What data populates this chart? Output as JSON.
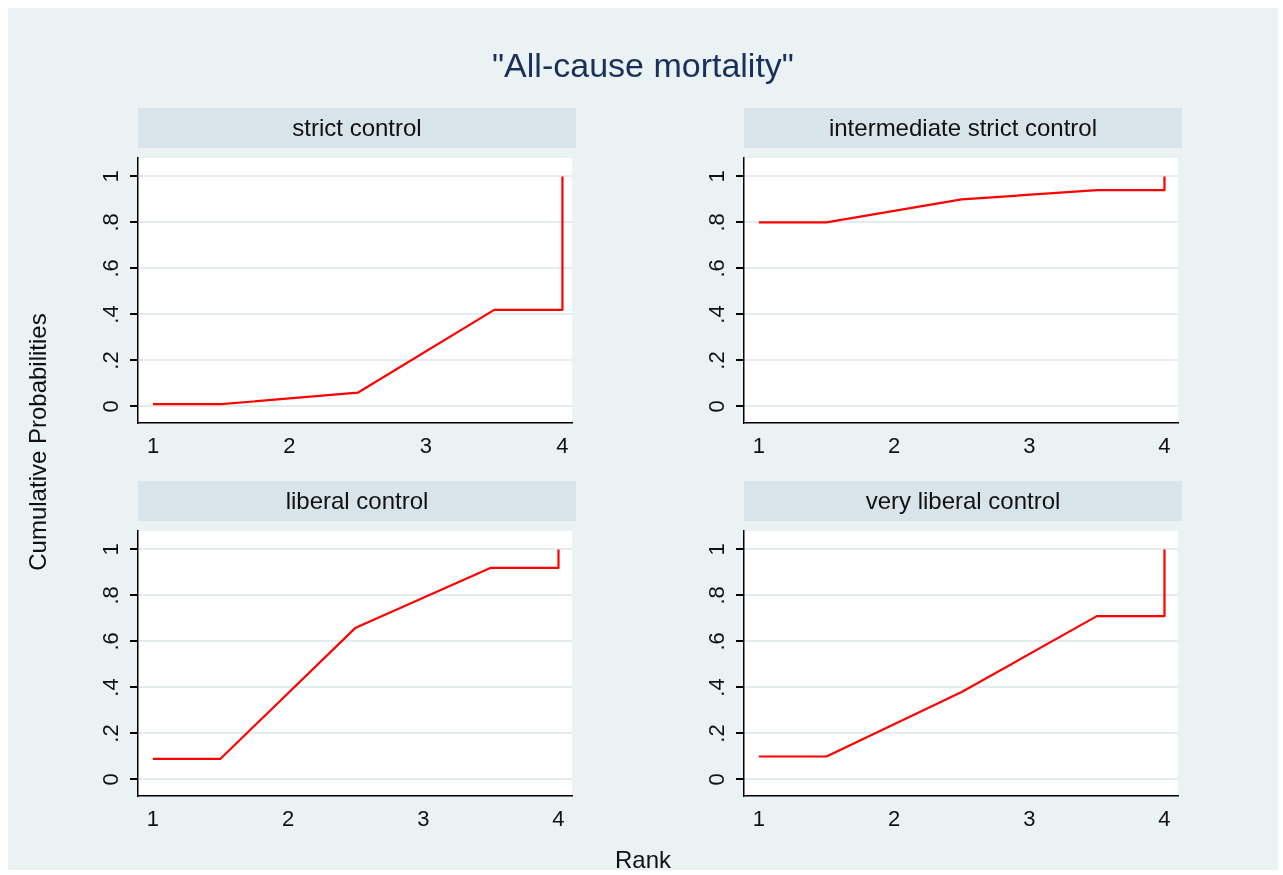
{
  "chart_data": [
    {
      "type": "line",
      "title": "strict control",
      "ylabel": "Cumulative Probabilities",
      "annotations": [
        "\"All-cause mortality\""
      ],
      "xlim": [
        0.89,
        4.07
      ],
      "ylim": [
        -0.07,
        1.08
      ],
      "xticks": [
        1,
        2,
        3,
        4
      ],
      "yticks": [
        {
          "value": 0,
          "label": "0"
        },
        {
          "value": 0.2,
          "label": ".2"
        },
        {
          "value": 0.4,
          "label": ".4"
        },
        {
          "value": 0.6,
          "label": ".6"
        },
        {
          "value": 0.8,
          "label": ".8"
        },
        {
          "value": 1,
          "label": "1"
        }
      ],
      "grid": "y",
      "legend": false,
      "marker": "none",
      "line_style": "solid",
      "series": [
        {
          "color": "#ff0000",
          "x": [
            1,
            1.5,
            2.5,
            3.5,
            4,
            4
          ],
          "values": [
            0.01,
            0.01,
            0.06,
            0.42,
            0.42,
            1
          ]
        }
      ]
    },
    {
      "type": "line",
      "title": "intermediate strict control",
      "xlim": [
        0.89,
        4.1
      ],
      "ylim": [
        -0.07,
        1.08
      ],
      "xticks": [
        1,
        2,
        3,
        4
      ],
      "yticks": [
        {
          "value": 0,
          "label": "0"
        },
        {
          "value": 0.2,
          "label": ".2"
        },
        {
          "value": 0.4,
          "label": ".4"
        },
        {
          "value": 0.6,
          "label": ".6"
        },
        {
          "value": 0.8,
          "label": ".8"
        },
        {
          "value": 1,
          "label": "1"
        }
      ],
      "grid": "y",
      "legend": false,
      "marker": "none",
      "line_style": "solid",
      "series": [
        {
          "color": "#ff0000",
          "x": [
            1,
            1.5,
            2.5,
            3.5,
            4,
            4
          ],
          "values": [
            0.8,
            0.8,
            0.9,
            0.94,
            0.94,
            1
          ]
        }
      ]
    },
    {
      "type": "line",
      "title": "liberal control",
      "xlabel": "Rank",
      "xlim": [
        0.89,
        4.1
      ],
      "ylim": [
        -0.07,
        1.08
      ],
      "xticks": [
        1,
        2,
        3,
        4
      ],
      "yticks": [
        {
          "value": 0,
          "label": "0"
        },
        {
          "value": 0.2,
          "label": ".2"
        },
        {
          "value": 0.4,
          "label": ".4"
        },
        {
          "value": 0.6,
          "label": ".6"
        },
        {
          "value": 0.8,
          "label": ".8"
        },
        {
          "value": 1,
          "label": "1"
        }
      ],
      "grid": "y",
      "legend": false,
      "marker": "none",
      "line_style": "solid",
      "series": [
        {
          "color": "#ff0000",
          "x": [
            1,
            1.5,
            2.5,
            3.5,
            4,
            4
          ],
          "values": [
            0.09,
            0.09,
            0.66,
            0.92,
            0.92,
            1
          ]
        }
      ]
    },
    {
      "type": "line",
      "title": "very liberal control",
      "xlim": [
        0.89,
        4.1
      ],
      "ylim": [
        -0.07,
        1.08
      ],
      "xticks": [
        1,
        2,
        3,
        4
      ],
      "yticks": [
        {
          "value": 0,
          "label": "0"
        },
        {
          "value": 0.2,
          "label": ".2"
        },
        {
          "value": 0.4,
          "label": ".4"
        },
        {
          "value": 0.6,
          "label": ".6"
        },
        {
          "value": 0.8,
          "label": ".8"
        },
        {
          "value": 1,
          "label": "1"
        }
      ],
      "grid": "y",
      "legend": false,
      "marker": "none",
      "line_style": "solid",
      "series": [
        {
          "color": "#ff0000",
          "x": [
            1,
            1.5,
            2.5,
            3.5,
            4,
            4
          ],
          "values": [
            0.1,
            0.1,
            0.38,
            0.71,
            0.71,
            1
          ]
        }
      ]
    }
  ]
}
